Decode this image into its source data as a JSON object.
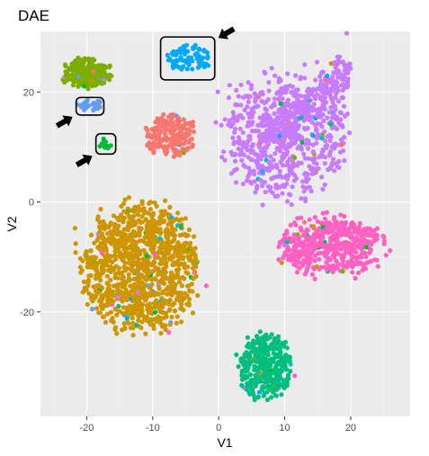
{
  "chart_data": {
    "type": "scatter",
    "title": "DAE",
    "xlabel": "V1",
    "ylabel": "V2",
    "xlim": [
      -27,
      29
    ],
    "ylim": [
      -39,
      31
    ],
    "xticks": [
      -20,
      -10,
      0,
      10,
      20
    ],
    "yticks": [
      -20,
      0,
      20
    ],
    "xtick_labels": [
      "-20",
      "-10",
      "0",
      "10",
      "20"
    ],
    "ytick_labels": [
      "-20",
      "0",
      "20"
    ],
    "grid": true,
    "legend": "none",
    "background": "#ebebeb",
    "colors": {
      "olive": "#7cae00",
      "cyan": "#00a9ff",
      "blue": "#619cff",
      "green": "#00ba38",
      "salmon": "#f8766d",
      "purple": "#c77cff",
      "orange": "#cd9600",
      "pink": "#ff61c3",
      "teal": "#00bf7d",
      "tealblue": "#00bfc4"
    },
    "clusters": [
      {
        "color": "olive",
        "center": [
          -20,
          23.5
        ],
        "spread": [
          3.5,
          2.5
        ],
        "count": 230,
        "shape": "blob"
      },
      {
        "color": "cyan",
        "center": [
          -4.5,
          26
        ],
        "spread": [
          3.2,
          2.4
        ],
        "count": 80,
        "shape": "blob"
      },
      {
        "color": "blue",
        "center": [
          -19.2,
          17.5
        ],
        "spread": [
          1.8,
          1.0
        ],
        "count": 35,
        "shape": "blob"
      },
      {
        "color": "green",
        "center": [
          -17.2,
          10.5
        ],
        "spread": [
          0.9,
          0.9
        ],
        "count": 12,
        "shape": "blob"
      },
      {
        "color": "salmon",
        "center": [
          -7.5,
          12
        ],
        "spread": [
          3.6,
          3.5
        ],
        "count": 200,
        "shape": "blob"
      },
      {
        "color": "purple",
        "center": [
          10,
          12
        ],
        "spread": [
          9,
          11
        ],
        "count": 900,
        "shape": "blob"
      },
      {
        "color": "orange",
        "center": [
          -12,
          -12
        ],
        "spread": [
          8.5,
          11
        ],
        "count": 1100,
        "shape": "blob"
      },
      {
        "color": "pink",
        "center": [
          17,
          -8
        ],
        "spread": [
          7.5,
          5
        ],
        "count": 500,
        "shape": "blob"
      },
      {
        "color": "teal",
        "center": [
          7,
          -30
        ],
        "spread": [
          3.8,
          5.5
        ],
        "count": 350,
        "shape": "blob"
      }
    ],
    "highlight_boxes": [
      {
        "x0": -8.8,
        "x1": -0.6,
        "y0": 22.2,
        "y1": 30.0,
        "arrow": "right"
      },
      {
        "x0": -21.6,
        "x1": -17.4,
        "y0": 15.8,
        "y1": 19.0,
        "arrow": "left"
      },
      {
        "x0": -18.6,
        "x1": -15.6,
        "y0": 8.7,
        "y1": 12.4,
        "arrow": "left"
      }
    ]
  }
}
